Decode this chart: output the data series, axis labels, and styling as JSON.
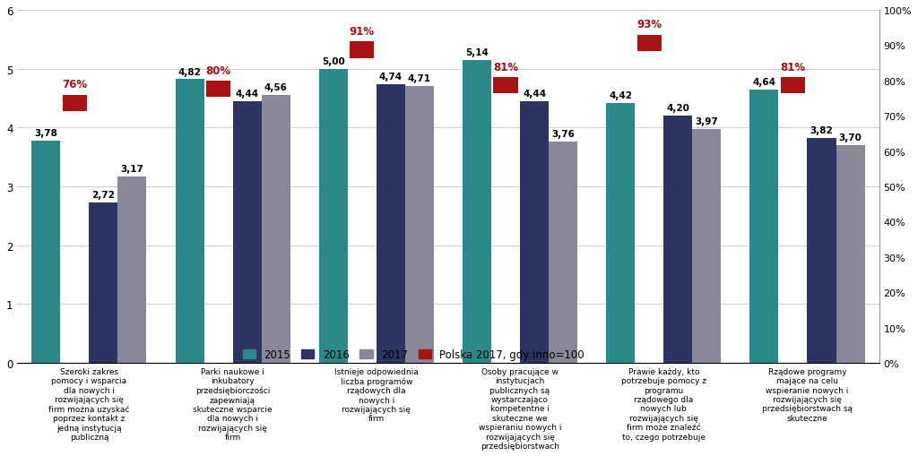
{
  "categories": [
    "Szeroki zakres\npomocy i wsparcia\ndla nowych i\nrozwijających się\nfirm można uzyskać\npoprzez kontakt z\njedną instytucją\npubliczną",
    "Parki naukowe i\ninkubatory\nprzedsiębiorczości\nzapewniają\nskuteczne wsparcie\ndla nowych i\nrozwijających się\nfirm",
    "Istnieje odpowiednia\nliczba programów\nrządowych dla\nnowych i\nrozwijających się\nfirm",
    "Osoby pracujące w\ninstytucjach\npublicznych są\nwystarczająco\nkompetentne i\nskuteczne we\nwspieraniu nowych i\nrozwijających się\nprzedsiębiorstwach",
    "Prawie każdy, kto\npotrzebuje pomocy z\nprogramu\nrządowego dla\nnowych lub\nrozwijających się\nfirm może znaleźć\nto, czego potrzebuje",
    "Rządowe programy\nmające na celu\nwspieranie nowych i\nrozwijających się\nprzedsiębiorstwach są\nskuteczne"
  ],
  "values_2015": [
    3.78,
    4.82,
    5.0,
    5.14,
    4.42,
    4.64
  ],
  "values_2016": [
    2.72,
    4.44,
    4.74,
    4.44,
    4.2,
    3.82
  ],
  "values_2017": [
    3.17,
    4.56,
    4.71,
    3.76,
    3.97,
    3.7
  ],
  "polska_pct": [
    76,
    80,
    91,
    81,
    93,
    81
  ],
  "color_2015": "#2a8a8a",
  "color_2016": "#2d3461",
  "color_2017": "#888899",
  "color_polska": "#aa1111",
  "ylim_max": 6,
  "bar_width": 0.2,
  "legend_labels": [
    "2015",
    "2016",
    "2017",
    "Polska 2017, gdy inno=100"
  ]
}
